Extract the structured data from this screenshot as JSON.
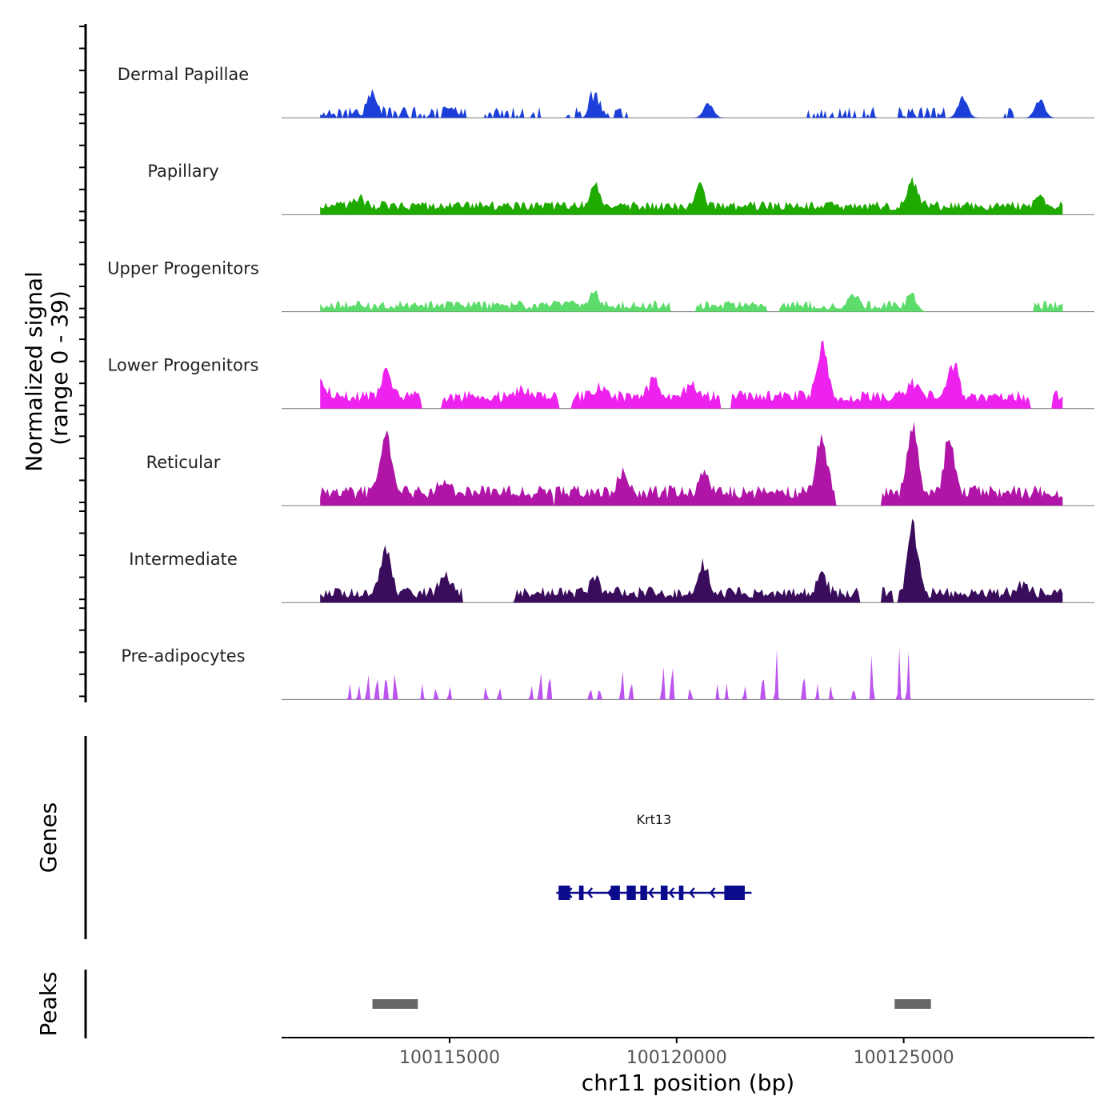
{
  "chart_data": {
    "type": "area",
    "title": "",
    "xlabel": "chr11 position (bp)",
    "ylabel_line1": "Normalized signal",
    "ylabel_line2": "(range 0 - 39)",
    "ylim": [
      0,
      39
    ],
    "xlim": [
      100111300,
      100129200
    ],
    "x_ticks": [
      {
        "value": 100115000,
        "label": "100115000"
      },
      {
        "value": 100120000,
        "label": "100120000"
      },
      {
        "value": 100125000,
        "label": "100125000"
      }
    ],
    "track_start": 100112150,
    "track_end": 100128500,
    "series": [
      {
        "name": "Dermal Papillae",
        "color": "#1b3fd8",
        "style": "spiky",
        "seed": 11,
        "baseline": 0,
        "noise": 5,
        "coverage": 0.6,
        "peaks": [
          [
            100113300,
            11
          ],
          [
            100118200,
            10
          ],
          [
            100120700,
            7
          ],
          [
            100126300,
            10
          ],
          [
            100128000,
            9
          ]
        ]
      },
      {
        "name": "Papillary",
        "color": "#1faa00",
        "style": "dense",
        "seed": 23,
        "baseline": 2,
        "noise": 4,
        "coverage": 1.0,
        "peaks": [
          [
            100113000,
            4
          ],
          [
            100118200,
            10
          ],
          [
            100120500,
            11
          ],
          [
            100125200,
            14
          ],
          [
            100128000,
            4
          ]
        ]
      },
      {
        "name": "Upper Progenitors",
        "color": "#5cdc6a",
        "style": "dense",
        "seed": 37,
        "baseline": 1,
        "noise": 4,
        "coverage": 0.9,
        "peaks": [
          [
            100118200,
            6
          ],
          [
            100123900,
            5
          ],
          [
            100125200,
            6
          ]
        ]
      },
      {
        "name": "Lower Progenitors",
        "color": "#ee22ee",
        "style": "dense",
        "seed": 41,
        "baseline": 3,
        "noise": 5,
        "coverage": 0.95,
        "peaks": [
          [
            100112200,
            6
          ],
          [
            100113600,
            14
          ],
          [
            100116600,
            4
          ],
          [
            100118300,
            5
          ],
          [
            100119500,
            9
          ],
          [
            100120300,
            7
          ],
          [
            100123200,
            27
          ],
          [
            100125200,
            7
          ],
          [
            100126100,
            16
          ]
        ]
      },
      {
        "name": "Reticular",
        "color": "#b015a8",
        "style": "dense",
        "seed": 53,
        "baseline": 3,
        "noise": 6,
        "coverage": 0.95,
        "peaks": [
          [
            100113600,
            31
          ],
          [
            100114900,
            8
          ],
          [
            100118800,
            9
          ],
          [
            100120600,
            9
          ],
          [
            100123200,
            29
          ],
          [
            100125200,
            37
          ],
          [
            100126000,
            26
          ]
        ]
      },
      {
        "name": "Intermediate",
        "color": "#3a0c5c",
        "style": "dense",
        "seed": 67,
        "baseline": 2,
        "noise": 5,
        "coverage": 0.85,
        "peaks": [
          [
            100113600,
            25
          ],
          [
            100114900,
            10
          ],
          [
            100118200,
            7
          ],
          [
            100120600,
            15
          ],
          [
            100123200,
            9
          ],
          [
            100125200,
            35
          ],
          [
            100127600,
            4
          ]
        ]
      },
      {
        "name": "Pre-adipocytes",
        "color": "#bb55ee",
        "style": "sparse",
        "seed": 79,
        "baseline": 0,
        "noise": 0,
        "coverage": 0.0,
        "peaks": [
          [
            100112800,
            7
          ],
          [
            100113000,
            7
          ],
          [
            100113200,
            14
          ],
          [
            100113400,
            14
          ],
          [
            100113600,
            16
          ],
          [
            100113800,
            16
          ],
          [
            100114400,
            7
          ],
          [
            100114700,
            7
          ],
          [
            100115000,
            7
          ],
          [
            100115800,
            7
          ],
          [
            100116100,
            7
          ],
          [
            100116800,
            7
          ],
          [
            100117000,
            16
          ],
          [
            100117200,
            16
          ],
          [
            100118100,
            7
          ],
          [
            100118300,
            7
          ],
          [
            100118800,
            16
          ],
          [
            100119000,
            11
          ],
          [
            100119700,
            18
          ],
          [
            100119900,
            21
          ],
          [
            100120300,
            7
          ],
          [
            100120900,
            7
          ],
          [
            100121100,
            7
          ],
          [
            100121500,
            7
          ],
          [
            100121900,
            16
          ],
          [
            100122200,
            23
          ],
          [
            100122800,
            16
          ],
          [
            100123100,
            7
          ],
          [
            100123400,
            7
          ],
          [
            100123900,
            7
          ],
          [
            100124300,
            23
          ],
          [
            100124900,
            23
          ],
          [
            100125100,
            23
          ]
        ]
      }
    ],
    "genes": [
      {
        "name": "Krt13",
        "start": 100117350,
        "end": 100121650,
        "strand": "-",
        "color": "#0a0a8c",
        "exons": [
          [
            100117400,
            100117650
          ],
          [
            100117850,
            100117950
          ],
          [
            100118550,
            100118750
          ],
          [
            100118900,
            100119100
          ],
          [
            100119200,
            100119350
          ],
          [
            100119650,
            100119800
          ],
          [
            100120050,
            100120150
          ],
          [
            100121050,
            100121500
          ]
        ]
      }
    ],
    "peaks_track": [
      {
        "start": 100113300,
        "end": 100114300
      },
      {
        "start": 100124800,
        "end": 100125600
      }
    ],
    "track_titles": {
      "genes": "Genes",
      "peaks": "Peaks"
    },
    "peak_color": "#666666",
    "baseline_color": "#777777"
  }
}
